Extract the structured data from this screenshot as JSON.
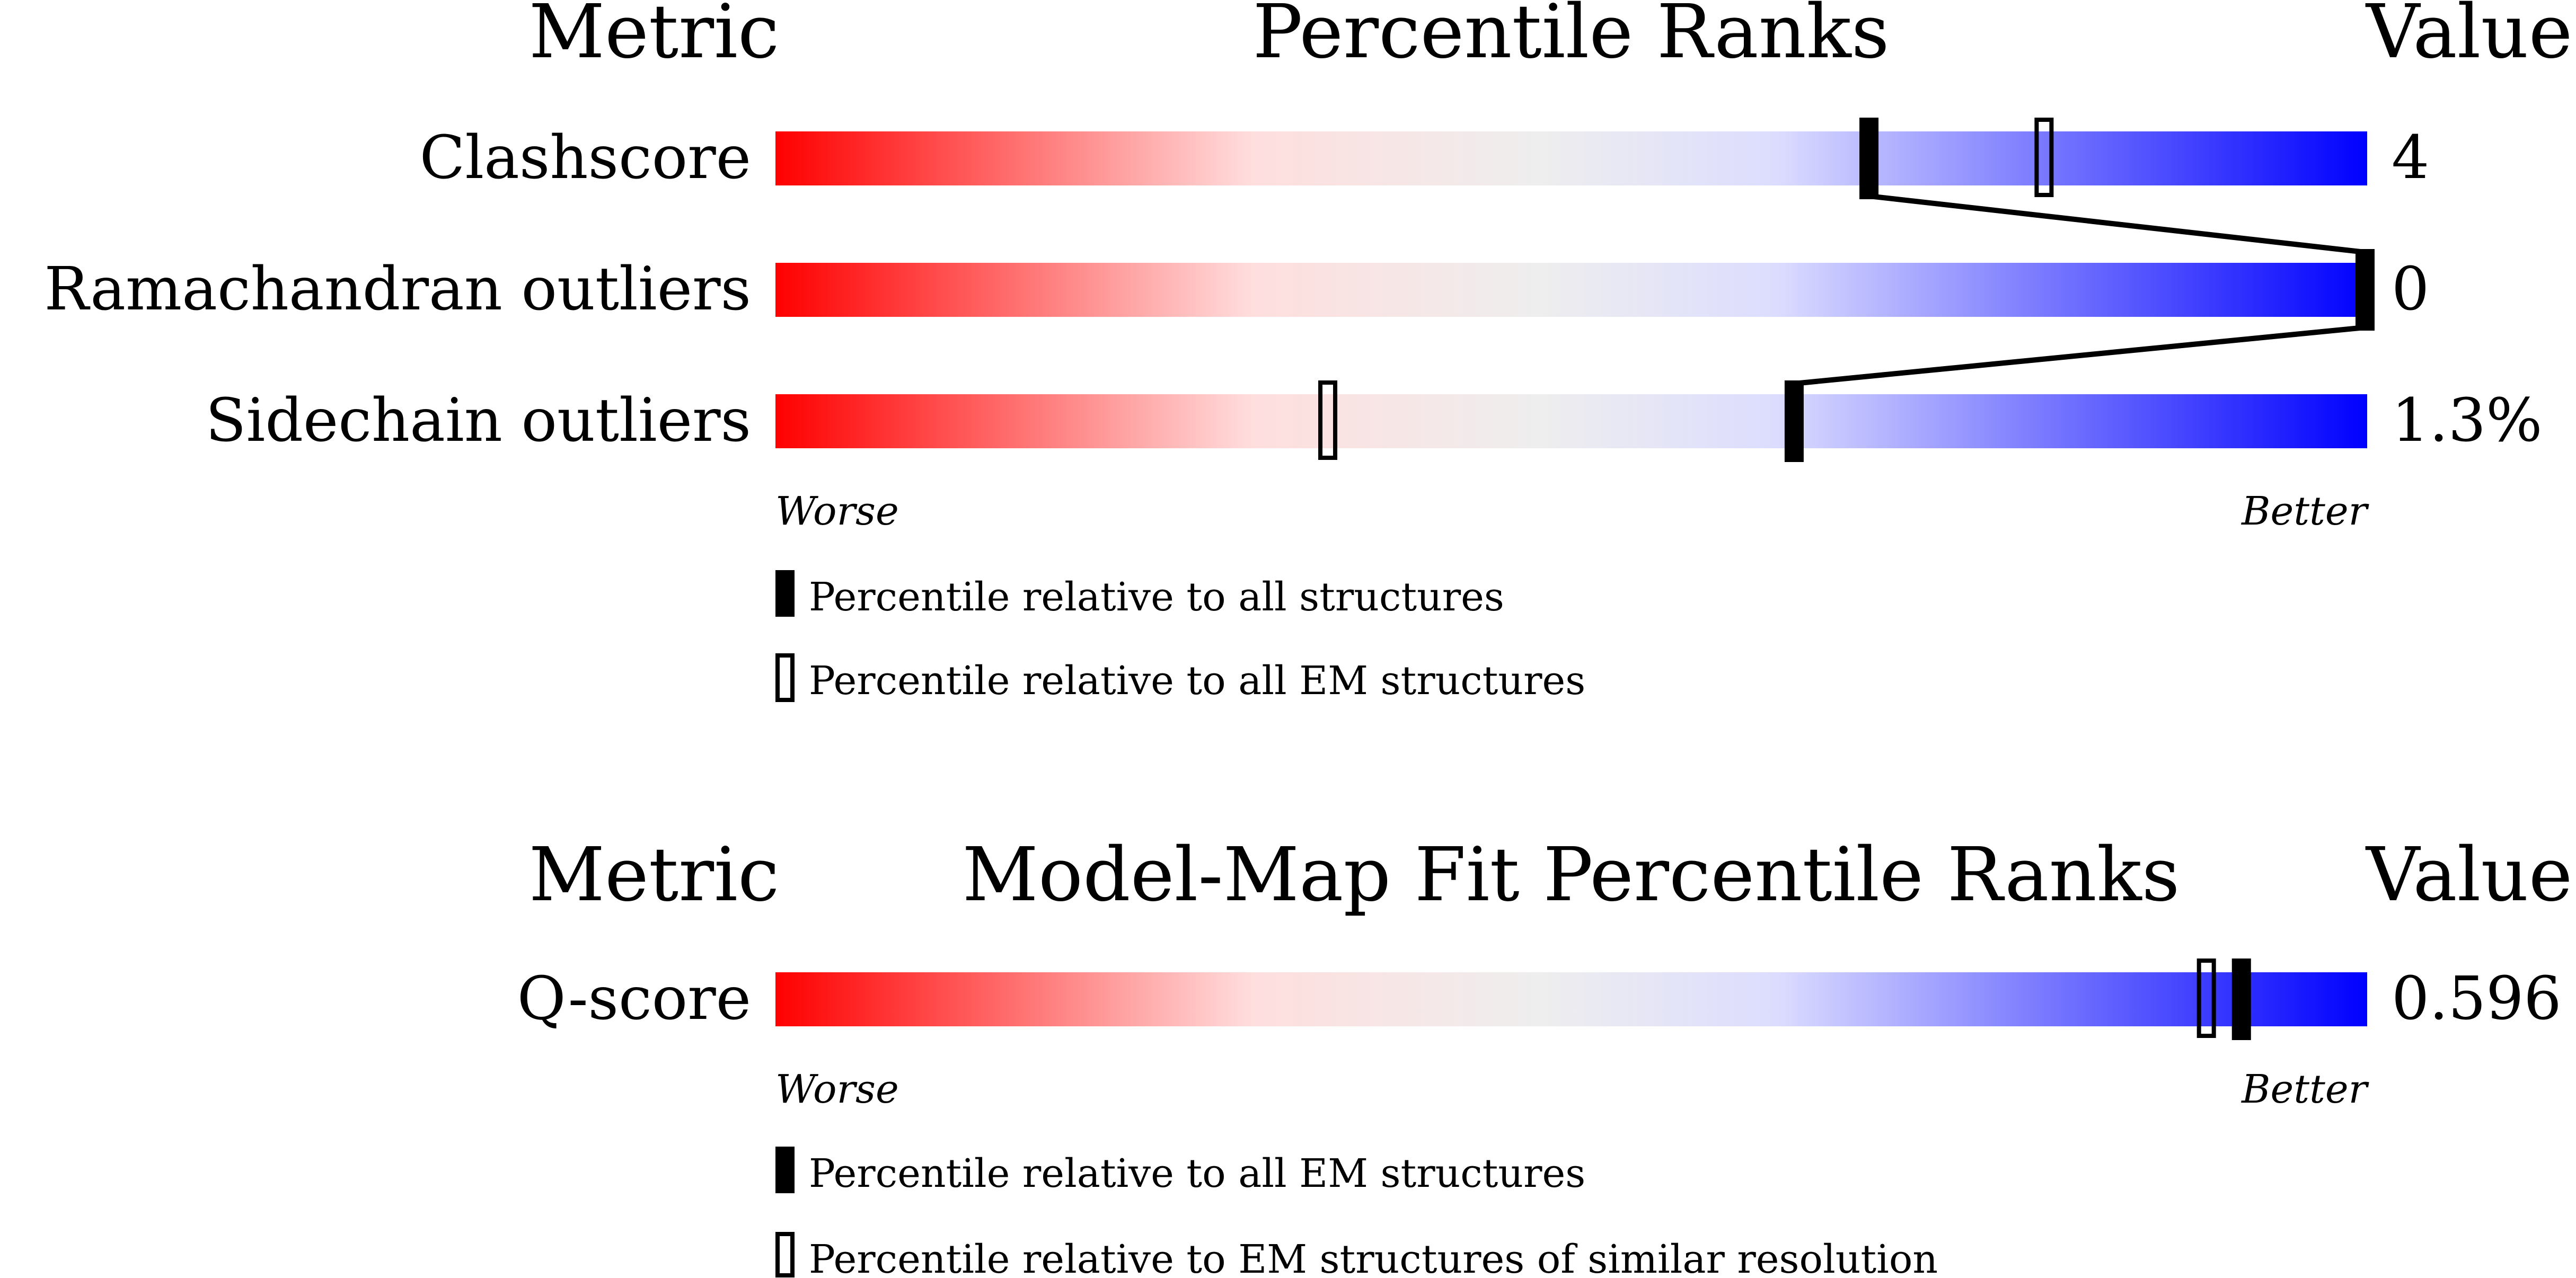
{
  "chart_data": [
    {
      "type": "percentile-slider",
      "headers": {
        "metric": "Metric",
        "title": "Percentile Ranks",
        "value": "Value"
      },
      "axis": {
        "left": "Worse",
        "right": "Better"
      },
      "xlim": [
        0,
        100
      ],
      "rows": [
        {
          "label": "Clashscore",
          "value": "4",
          "percentile_all": 68.7,
          "percentile_subset": 79.7
        },
        {
          "label": "Ramachandran outliers",
          "value": "0",
          "percentile_all": 100,
          "percentile_subset": null
        },
        {
          "label": "Sidechain outliers",
          "value": "1.3%",
          "percentile_all": 64.0,
          "percentile_subset": 34.7
        }
      ],
      "connect_filled_markers": true,
      "legend": {
        "filled": "Percentile relative to all structures",
        "open": "Percentile relative to all EM structures"
      }
    },
    {
      "type": "percentile-slider",
      "headers": {
        "metric": "Metric",
        "title": "Model-Map Fit Percentile Ranks",
        "value": "Value"
      },
      "axis": {
        "left": "Worse",
        "right": "Better"
      },
      "xlim": [
        0,
        100
      ],
      "rows": [
        {
          "label": "Q-score",
          "value": "0.596",
          "percentile_all": 92.1,
          "percentile_subset": 89.9
        }
      ],
      "connect_filled_markers": false,
      "legend": {
        "filled": "Percentile relative to all EM structures",
        "open": "Percentile relative to EM structures of similar resolution"
      }
    }
  ],
  "colors": {
    "worse": "#ff0000",
    "middle": "#eeeeee",
    "better": "#0000ff",
    "marker": "#000000"
  }
}
